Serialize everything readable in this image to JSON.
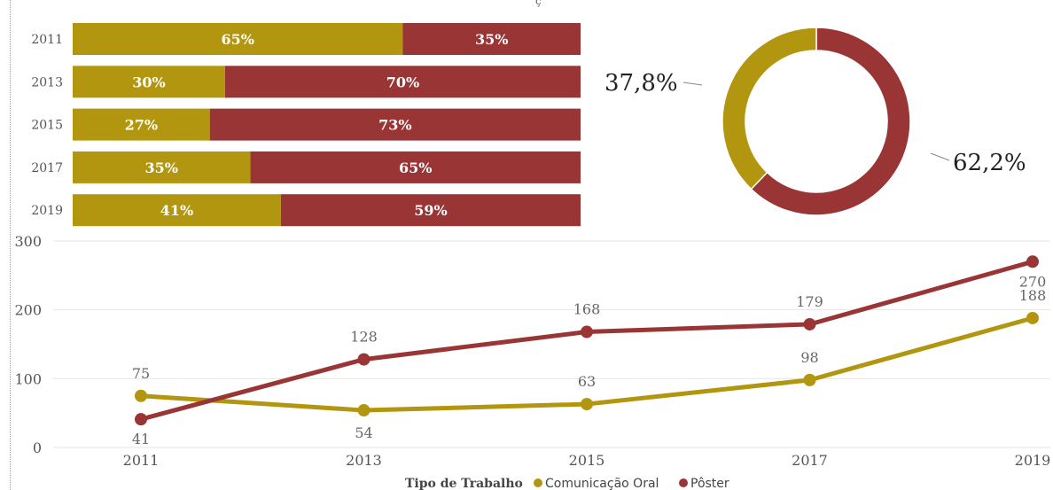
{
  "colors": {
    "oral": "#b3960f",
    "poster": "#993535",
    "grid": "#e6e6e6",
    "axis_text": "#555555"
  },
  "top_fragment": "ç",
  "chart_data": [
    {
      "type": "bar",
      "orientation": "horizontal",
      "stacked": true,
      "percent": true,
      "categories": [
        "2011",
        "2013",
        "2015",
        "2017",
        "2019"
      ],
      "series": [
        {
          "name": "Comunicação Oral",
          "values": [
            65,
            30,
            27,
            35,
            41
          ],
          "labels": [
            "65%",
            "30%",
            "27%",
            "35%",
            "41%"
          ]
        },
        {
          "name": "Pôster",
          "values": [
            35,
            70,
            73,
            65,
            59
          ],
          "labels": [
            "35%",
            "70%",
            "73%",
            "65%",
            "59%"
          ]
        }
      ]
    },
    {
      "type": "pie",
      "donut": true,
      "slices": [
        {
          "name": "Comunicação Oral",
          "value": 37.8,
          "label": "37,8%"
        },
        {
          "name": "Pôster",
          "value": 62.2,
          "label": "62,2%"
        }
      ]
    },
    {
      "type": "line",
      "x": [
        "2011",
        "2013",
        "2015",
        "2017",
        "2019"
      ],
      "ylim": [
        0,
        300
      ],
      "yticks": [
        "0",
        "100",
        "200",
        "300"
      ],
      "grid": true,
      "legend": {
        "title": "Tipo de Trabalho",
        "position": "bottom"
      },
      "series": [
        {
          "name": "Comunicação Oral",
          "values": [
            75,
            54,
            63,
            98,
            188
          ],
          "labels": [
            "75",
            "54",
            "63",
            "98",
            "188"
          ]
        },
        {
          "name": "Pôster",
          "values": [
            41,
            128,
            168,
            179,
            270
          ],
          "labels": [
            "41",
            "128",
            "168",
            "179",
            "270"
          ]
        }
      ]
    }
  ]
}
